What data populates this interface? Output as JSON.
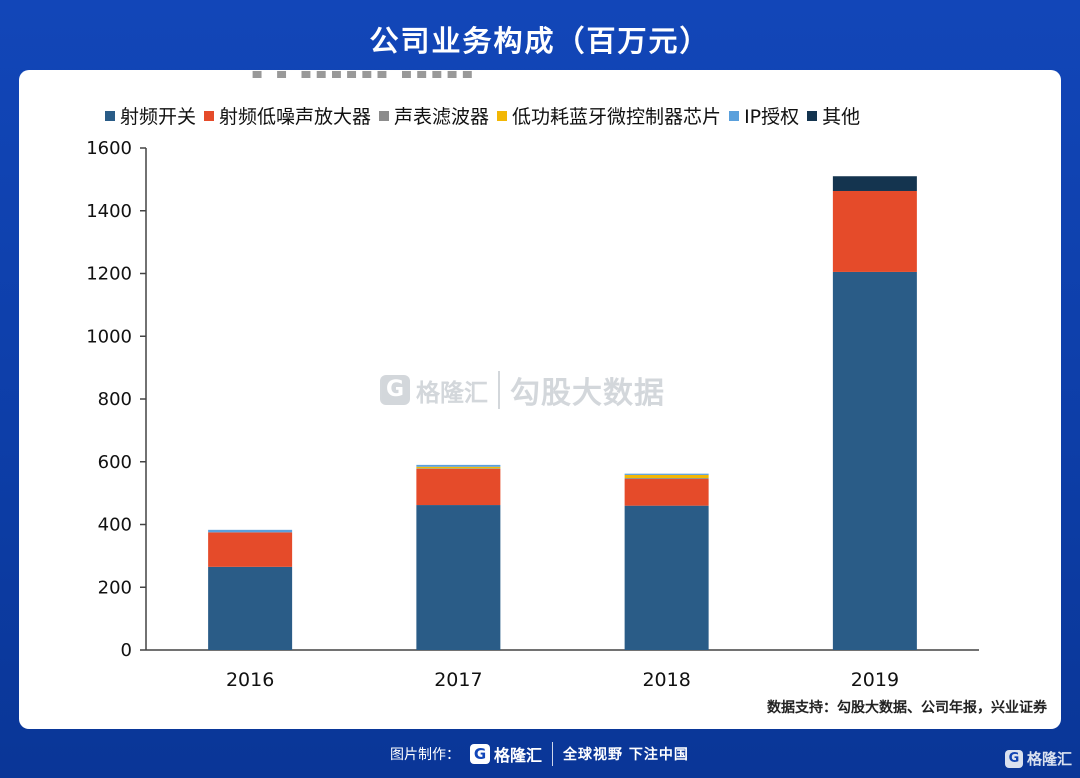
{
  "header": {
    "title": "公司业务构成（百万元）"
  },
  "chart_data": {
    "type": "bar",
    "stacked": true,
    "categories": [
      "2016",
      "2017",
      "2018",
      "2019"
    ],
    "series": [
      {
        "name": "射频开关",
        "color": "#2a5c87",
        "values": [
          265,
          462,
          460,
          1205
        ]
      },
      {
        "name": "射频低噪声放大器",
        "color": "#e54b2a",
        "values": [
          110,
          115,
          85,
          258
        ]
      },
      {
        "name": "声表滤波器",
        "color": "#8c8c8c",
        "values": [
          0,
          2,
          3,
          0
        ]
      },
      {
        "name": "低功耗蓝牙微控制器芯片",
        "color": "#f2b705",
        "values": [
          0,
          5,
          10,
          0
        ]
      },
      {
        "name": "IP授权",
        "color": "#5aa0dc",
        "values": [
          8,
          6,
          4,
          0
        ]
      },
      {
        "name": "其他",
        "color": "#14344f",
        "values": [
          0,
          0,
          0,
          47
        ]
      }
    ],
    "ylim": [
      0,
      1600
    ],
    "yticks": [
      0,
      200,
      400,
      600,
      800,
      1000,
      1200,
      1400,
      1600
    ],
    "legend_position": "top",
    "grid": false
  },
  "watermark": {
    "g": "G",
    "brand": "格隆汇",
    "text": "勾股大数据"
  },
  "source": "数据支持：勾股大数据、公司年报，兴业证券",
  "footer": {
    "label": "图片制作：",
    "g": "G",
    "brand": "格隆汇",
    "slogan": "全球视野 下注中国"
  },
  "corner_logo": {
    "g": "G",
    "brand": "格隆汇"
  }
}
